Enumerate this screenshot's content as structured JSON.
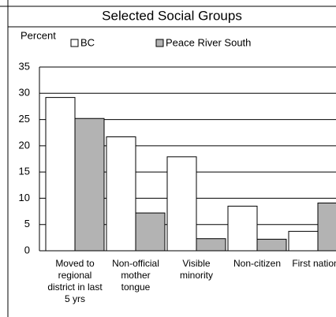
{
  "chart_data": {
    "type": "bar",
    "title": "Selected Social Groups",
    "y_label": "Percent",
    "categories": [
      "Moved to regional district in last 5 yrs",
      "Non-official mother tongue",
      "Visible minority",
      "Non-citizen",
      "First nations"
    ],
    "series": [
      {
        "name": "BC",
        "color": "#ffffff",
        "values": [
          29.2,
          21.7,
          17.9,
          8.5,
          3.7
        ]
      },
      {
        "name": "Peace River South",
        "color": "#b3b3b3",
        "values": [
          25.2,
          7.2,
          2.3,
          2.2,
          9.1
        ]
      }
    ],
    "ylim": [
      0,
      35
    ],
    "yticks": [
      0,
      5,
      10,
      15,
      20,
      25,
      30,
      35
    ],
    "grid": true
  }
}
